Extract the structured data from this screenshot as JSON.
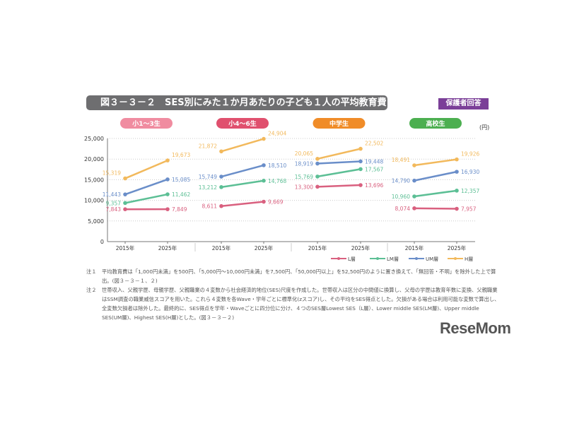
{
  "title": "図３－３－２　SES別にみた１か月あたりの子ども１人の平均教育費",
  "badge": "保護者回答",
  "logo": "ReseMom",
  "notes": [
    {
      "label": "注１",
      "text": "平均教育費は「1,000円未満」を500円、「5,000円～10,000円未満」を7,500円、「50,000円以上」を52,500円のように置き換えて、「無回答・不明」を除外した上で算出。(図３－３－１、２)"
    },
    {
      "label": "注２",
      "text": "世帯収入、父親学歴、母親学歴、父親職業の４変数から社会経済的地位(SES)尺度を作成した。世帯収入は区分の中間値に換算し、父母の学歴は教育年数に変換、父親職業はSSM調査の職業威信スコアを用いた。これら４変数を各Wave・学年ごとに標準化(zスコア)し、その平均をSES得点とした。欠損がある場合は利用可能な変数で算出し、全変数欠損者は除外した。最終的に、SES得点を学年・Waveごとに四分位に分け、４つのSES層Lowest SES（L層）、Lower middle SES(LM層)、Upper middle SES(UM層)、Highest SES(H層)とした。(図３－３－２)"
    }
  ],
  "chart_data": {
    "type": "line",
    "unit": "(円)",
    "ylim": [
      0,
      25000
    ],
    "yticks": [
      "0",
      "5,000",
      "10,000",
      "15,000",
      "20,000",
      "25,000"
    ],
    "grid": true,
    "legend_placement": "bottom-right",
    "x": [
      "2015年",
      "2025年"
    ],
    "panels": [
      {
        "label": "小1～3生",
        "color": "#f08ca0",
        "series": {
          "L": [
            7843,
            7849
          ],
          "LM": [
            9357,
            11462
          ],
          "UM": [
            11443,
            15085
          ],
          "H": [
            15319,
            19673
          ]
        },
        "labels": {
          "L": [
            "7,843",
            "7,849"
          ],
          "LM": [
            "9,357",
            "11,462"
          ],
          "UM": [
            "11,443",
            "15,085"
          ],
          "H": [
            "15,319",
            "19,673"
          ]
        }
      },
      {
        "label": "小4～6生",
        "color": "#e0506e",
        "series": {
          "L": [
            8611,
            9669
          ],
          "LM": [
            13212,
            14768
          ],
          "UM": [
            15749,
            18510
          ],
          "H": [
            21872,
            24904
          ]
        },
        "labels": {
          "L": [
            "8,611",
            "9,669"
          ],
          "LM": [
            "13,212",
            "14,768"
          ],
          "UM": [
            "15,749",
            "18,510"
          ],
          "H": [
            "21,872",
            "24,904"
          ]
        }
      },
      {
        "label": "中学生",
        "color": "#f08c28",
        "series": {
          "L": [
            13300,
            13696
          ],
          "LM": [
            15769,
            17567
          ],
          "UM": [
            18919,
            19448
          ],
          "H": [
            20065,
            22502
          ]
        },
        "labels": {
          "L": [
            "13,300",
            "13,696"
          ],
          "LM": [
            "15,769",
            "17,567"
          ],
          "UM": [
            "18,919",
            "19,448"
          ],
          "H": [
            "20,065",
            "22,502"
          ]
        }
      },
      {
        "label": "高校生",
        "color": "#4caf50",
        "series": {
          "L": [
            8074,
            7957
          ],
          "LM": [
            10960,
            12357
          ],
          "UM": [
            14790,
            16930
          ],
          "H": [
            18491,
            19926
          ]
        },
        "labels": {
          "L": [
            "8,074",
            "7,957"
          ],
          "LM": [
            "10,960",
            "12,357"
          ],
          "UM": [
            "14,790",
            "16,930"
          ],
          "H": [
            "18,491",
            "19,926"
          ]
        }
      }
    ],
    "series": [
      {
        "key": "L",
        "name": "L層",
        "color": "#d9607f"
      },
      {
        "key": "LM",
        "name": "LM層",
        "color": "#5cbf95"
      },
      {
        "key": "UM",
        "name": "UM層",
        "color": "#6a8ec9"
      },
      {
        "key": "H",
        "name": "H層",
        "color": "#f2b95c"
      }
    ]
  }
}
